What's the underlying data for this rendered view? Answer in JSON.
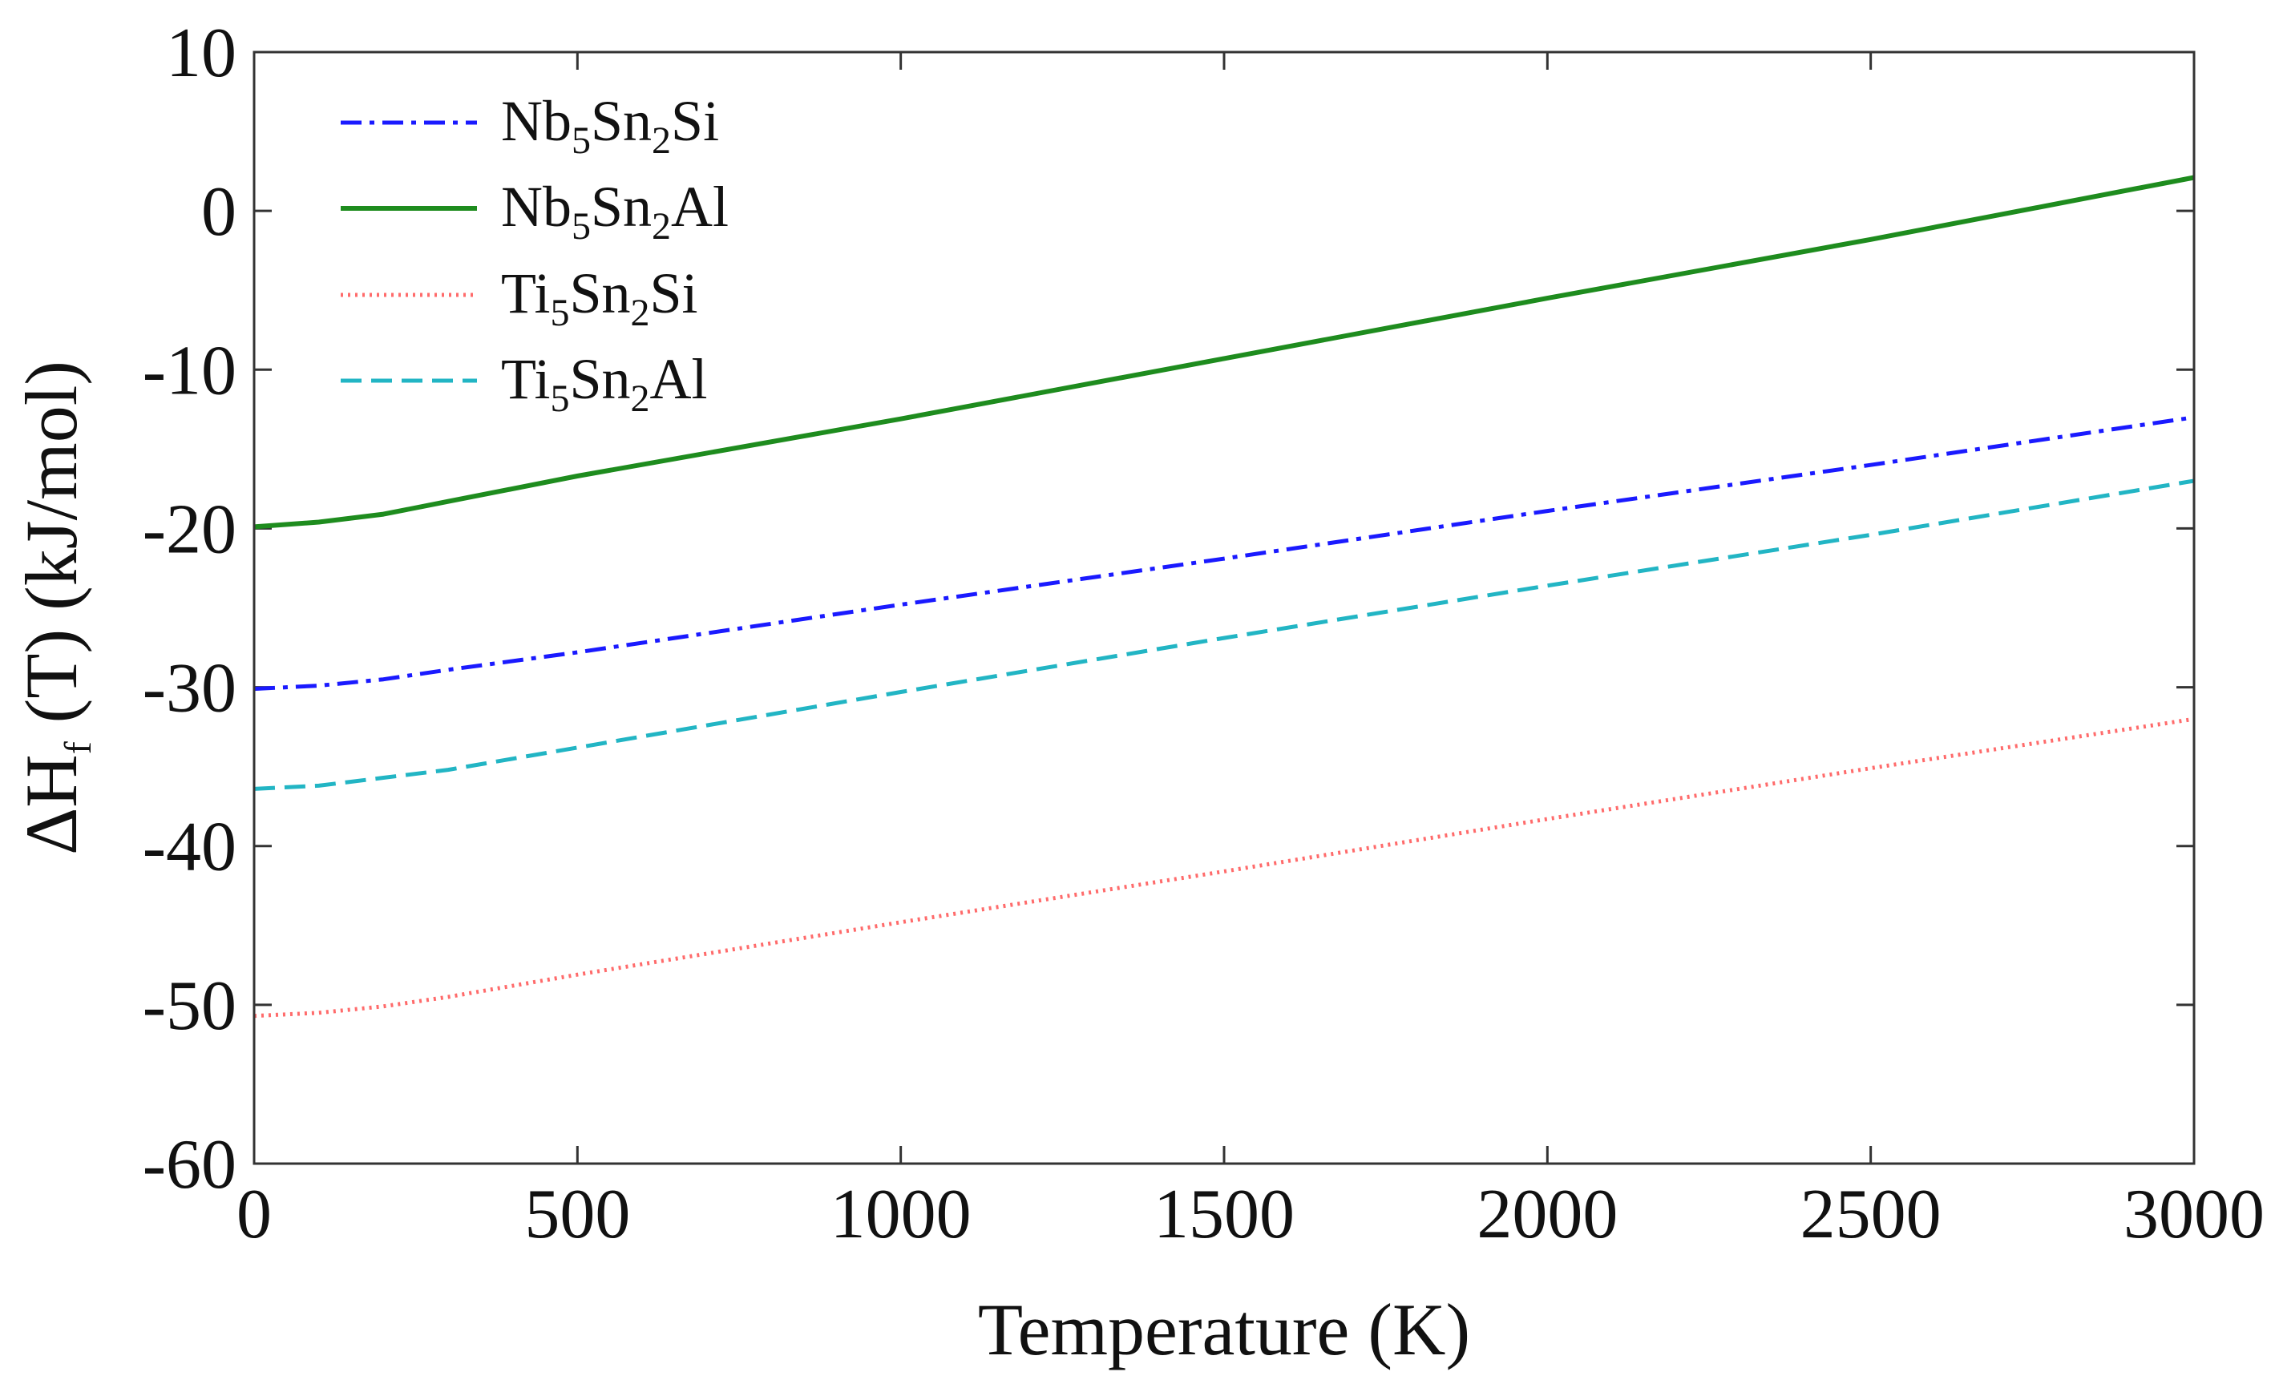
{
  "chart_data": {
    "type": "line",
    "xlabel": "Temperature (K)",
    "ylabel": {
      "prefix": "ΔH",
      "subscript": "f",
      "suffix": " (T) (kJ/mol)"
    },
    "xlim": [
      0,
      3000
    ],
    "ylim": [
      -60,
      10
    ],
    "xticks": [
      0,
      500,
      1000,
      1500,
      2000,
      2500,
      3000
    ],
    "yticks": [
      10,
      0,
      -10,
      -20,
      -30,
      -40,
      -50,
      -60
    ],
    "grid": false,
    "legend_position": "top-left",
    "x": [
      0,
      100,
      200,
      300,
      500,
      1000,
      1500,
      2000,
      2500,
      3000
    ],
    "series": [
      {
        "name": "Nb5Sn2Si",
        "label_parts": [
          "Nb",
          "5",
          "Sn",
          "2",
          "Si"
        ],
        "color": "#1a1aff",
        "style": "dashdot",
        "values": [
          -30.1,
          -29.9,
          -29.5,
          -28.9,
          -27.8,
          -24.8,
          -21.9,
          -18.9,
          -16.0,
          -13.0
        ]
      },
      {
        "name": "Nb5Sn2Al",
        "label_parts": [
          "Nb",
          "5",
          "Sn",
          "2",
          "Al"
        ],
        "color": "#1e8c1e",
        "style": "solid",
        "values": [
          -19.9,
          -19.6,
          -19.1,
          -18.3,
          -16.7,
          -13.1,
          -9.3,
          -5.5,
          -1.8,
          2.1
        ]
      },
      {
        "name": "Ti5Sn2Si",
        "label_parts": [
          "Ti",
          "5",
          "Sn",
          "2",
          "Si"
        ],
        "color": "#ff6b6b",
        "style": "dotted",
        "values": [
          -50.7,
          -50.5,
          -50.1,
          -49.5,
          -48.1,
          -44.8,
          -41.6,
          -38.3,
          -35.1,
          -32.0
        ]
      },
      {
        "name": "Ti5Sn2Al",
        "label_parts": [
          "Ti",
          "5",
          "Sn",
          "2",
          "Al"
        ],
        "color": "#22b5c4",
        "style": "dashed",
        "values": [
          -36.4,
          -36.2,
          -35.7,
          -35.2,
          -33.8,
          -30.3,
          -26.9,
          -23.6,
          -20.4,
          -17.0
        ]
      }
    ]
  }
}
